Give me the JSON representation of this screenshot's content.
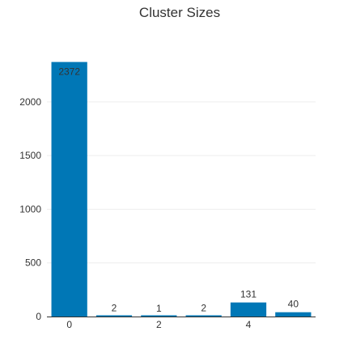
{
  "chart_data": {
    "type": "bar",
    "title": "Cluster Sizes",
    "xlabel": "",
    "ylabel": "",
    "categories": [
      0,
      1,
      2,
      3,
      4,
      5
    ],
    "values": [
      2372,
      2,
      1,
      2,
      131,
      40
    ],
    "data_labels": [
      "2372",
      "2",
      "1",
      "2",
      "131",
      "40"
    ],
    "x_tick_labels": [
      {
        "value": 0,
        "label": "0"
      },
      {
        "value": 2,
        "label": "2"
      },
      {
        "value": 4,
        "label": "4"
      }
    ],
    "y_tick_labels": [
      {
        "value": 0,
        "label": "0"
      },
      {
        "value": 500,
        "label": "500"
      },
      {
        "value": 1000,
        "label": "1000"
      },
      {
        "value": 1500,
        "label": "1500"
      },
      {
        "value": 2000,
        "label": "2000"
      }
    ],
    "ylim": [
      0,
      2497
    ],
    "xlim": [
      -0.5,
      5.5
    ],
    "grid": true,
    "legend": "none",
    "colors": {
      "bar": "#0077b6",
      "grid": "#eeeeee",
      "text": "#333333"
    }
  }
}
